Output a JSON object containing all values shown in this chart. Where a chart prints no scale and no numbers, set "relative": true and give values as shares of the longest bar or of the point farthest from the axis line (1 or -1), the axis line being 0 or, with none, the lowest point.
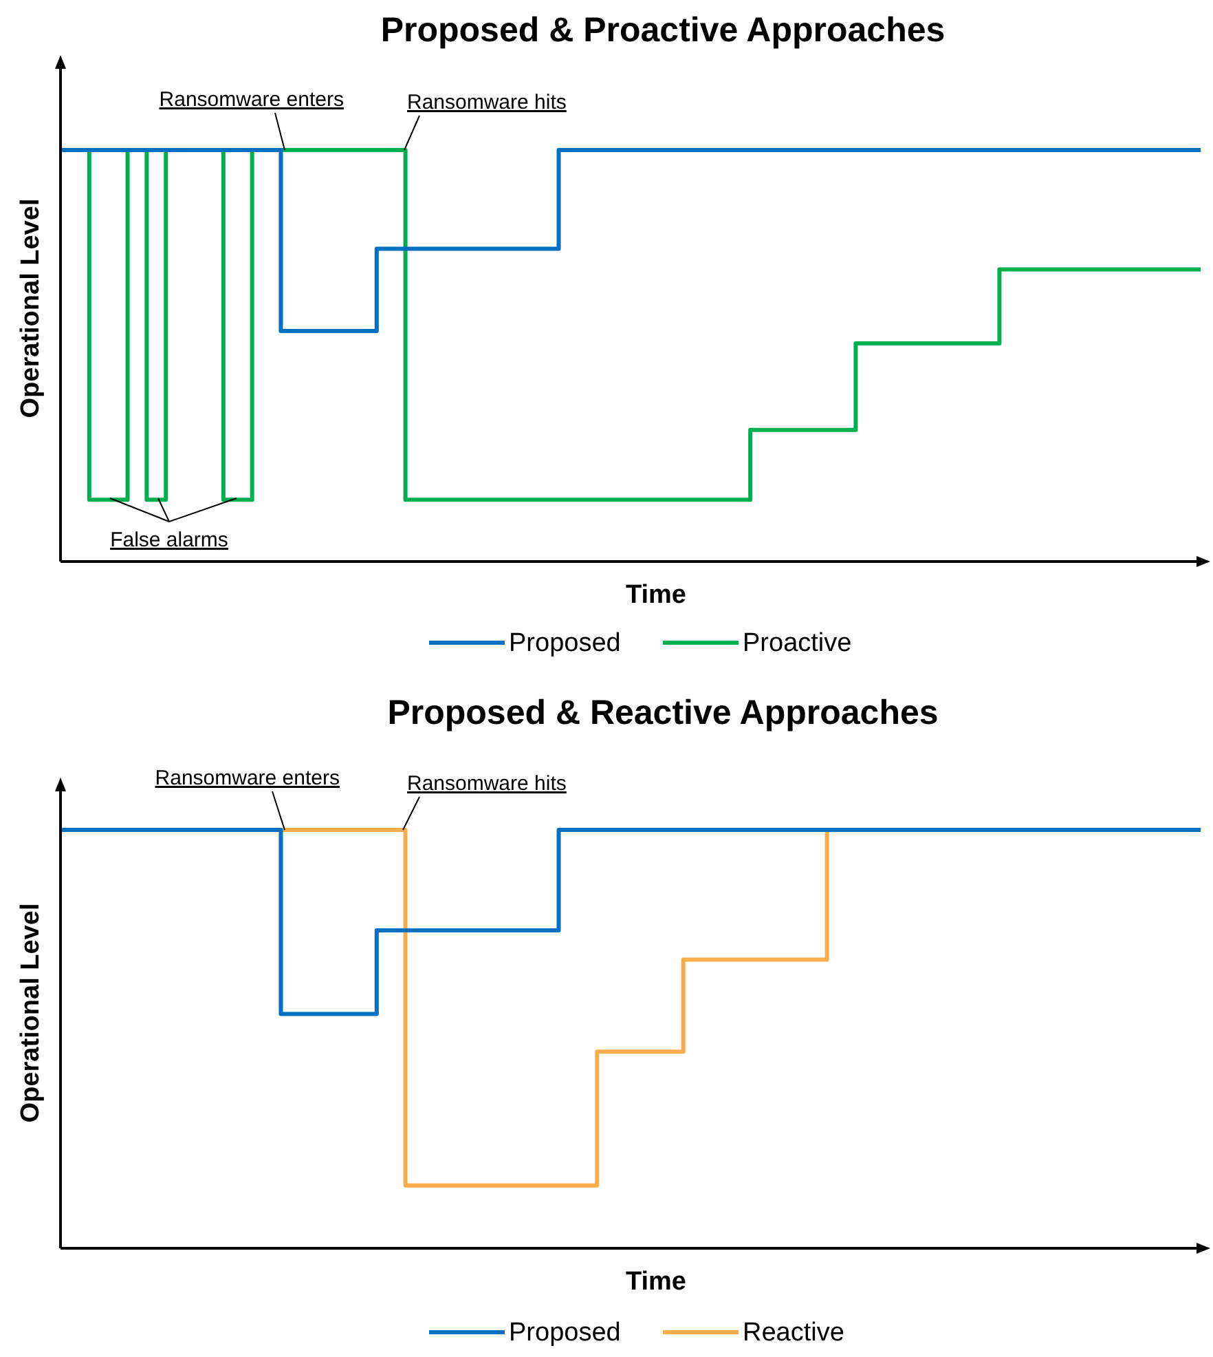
{
  "chart_data": [
    {
      "type": "step",
      "title": "Proposed & Proactive Approaches",
      "xlabel": "Time",
      "ylabel": "Operational Level",
      "relative": true,
      "legend": "bottom",
      "annotations": [
        "Ransomware enters",
        "Ransomware hits",
        "False alarms"
      ],
      "categories": [
        null,
        null,
        null,
        null,
        null,
        null,
        null,
        null,
        null,
        null,
        null,
        null,
        null,
        null,
        null,
        null,
        null,
        null,
        null,
        null,
        null,
        null,
        null,
        null,
        null,
        null,
        null,
        null,
        null,
        null,
        null,
        null,
        null,
        null,
        null,
        null,
        null,
        null,
        null,
        null,
        null,
        null,
        null,
        null,
        null,
        null,
        null,
        null,
        null,
        null,
        null,
        null,
        null,
        null,
        null,
        null,
        null,
        null,
        null,
        null,
        null,
        null,
        null,
        null,
        null,
        null,
        null,
        null,
        null,
        null,
        null,
        null,
        null,
        null,
        null,
        null,
        null,
        null,
        null,
        null,
        null,
        null,
        null,
        null,
        null,
        null,
        null,
        null,
        null,
        null,
        null,
        null,
        null,
        null,
        null,
        null,
        null,
        null,
        null,
        null,
        null,
        null,
        null,
        null,
        null,
        null,
        null,
        null,
        null,
        null,
        null,
        null,
        null,
        null,
        null,
        null,
        null,
        null,
        null,
        null
      ],
      "series": [
        {
          "name": "Proactive",
          "color": "#00b050",
          "values": [
            1,
            1,
            1,
            0.15,
            0.15,
            0.15,
            0.15,
            1,
            1,
            0.15,
            0.15,
            1,
            1,
            1,
            1,
            1,
            1,
            0.15,
            0.15,
            0.15,
            1,
            1,
            1,
            1,
            1,
            1,
            1,
            1,
            1,
            1,
            1,
            1,
            1,
            1,
            1,
            1,
            0.15,
            0.15,
            0.15,
            0.15,
            0.15,
            0.15,
            0.15,
            0.15,
            0.15,
            0.15,
            0.15,
            0.15,
            0.15,
            0.15,
            0.15,
            0.15,
            0.15,
            0.15,
            0.15,
            0.15,
            0.15,
            0.15,
            0.15,
            0.15,
            0.15,
            0.15,
            0.15,
            0.15,
            0.15,
            0.15,
            0.15,
            0.15,
            0.15,
            0.15,
            0.15,
            0.15,
            0.32,
            0.32,
            0.32,
            0.32,
            0.32,
            0.32,
            0.32,
            0.32,
            0.32,
            0.32,
            0.32,
            0.53,
            0.53,
            0.53,
            0.53,
            0.53,
            0.53,
            0.53,
            0.53,
            0.53,
            0.53,
            0.53,
            0.53,
            0.53,
            0.53,
            0.53,
            0.71,
            0.71,
            0.71,
            0.71,
            0.71,
            0.71,
            0.71,
            0.71,
            0.71,
            0.71,
            0.71,
            0.71,
            0.71,
            0.71,
            0.71,
            0.71,
            0.71,
            0.71,
            0.71,
            0.71,
            0.71,
            0.71
          ]
        },
        {
          "name": "Proposed",
          "color": "#0070c0",
          "values": [
            1,
            1,
            1,
            1,
            1,
            1,
            1,
            1,
            1,
            1,
            1,
            1,
            1,
            1,
            1,
            1,
            1,
            1,
            1,
            1,
            1,
            1,
            1,
            0.56,
            0.56,
            0.56,
            0.56,
            0.56,
            0.56,
            0.56,
            0.56,
            0.56,
            0.56,
            0.76,
            0.76,
            0.76,
            0.76,
            0.76,
            0.76,
            0.76,
            0.76,
            0.76,
            0.76,
            0.76,
            0.76,
            0.76,
            0.76,
            0.76,
            0.76,
            0.76,
            0.76,
            0.76,
            1,
            1,
            1,
            1,
            1,
            1,
            1,
            1,
            1,
            1,
            1,
            1,
            1,
            1,
            1,
            1,
            1,
            1,
            1,
            1,
            1,
            1,
            1,
            1,
            1,
            1,
            1,
            1,
            1,
            1,
            1,
            1,
            1,
            1,
            1,
            1,
            1,
            1,
            1,
            1,
            1,
            1,
            1,
            1,
            1,
            1,
            1,
            1,
            1,
            1,
            1,
            1,
            1,
            1,
            1,
            1,
            1,
            1,
            1,
            1,
            1,
            1,
            1,
            1,
            1,
            1,
            1,
            1
          ]
        }
      ]
    },
    {
      "type": "step",
      "title": "Proposed & Reactive Approaches",
      "xlabel": "Time",
      "ylabel": "Operational Level",
      "relative": true,
      "legend": "bottom",
      "annotations": [
        "Ransomware enters",
        "Ransomware hits"
      ],
      "categories": [
        null,
        null,
        null,
        null,
        null,
        null,
        null,
        null,
        null,
        null,
        null,
        null,
        null,
        null,
        null,
        null,
        null,
        null,
        null,
        null,
        null,
        null,
        null,
        null,
        null,
        null,
        null,
        null,
        null,
        null,
        null,
        null,
        null,
        null,
        null,
        null,
        null,
        null,
        null,
        null,
        null,
        null,
        null,
        null,
        null,
        null,
        null,
        null,
        null,
        null,
        null,
        null,
        null,
        null,
        null,
        null,
        null,
        null,
        null,
        null,
        null,
        null,
        null,
        null,
        null,
        null,
        null,
        null,
        null,
        null,
        null,
        null,
        null,
        null,
        null,
        null,
        null,
        null,
        null,
        null,
        null,
        null,
        null,
        null,
        null,
        null,
        null,
        null,
        null,
        null,
        null,
        null,
        null,
        null,
        null,
        null,
        null,
        null,
        null,
        null,
        null,
        null,
        null,
        null,
        null,
        null,
        null,
        null,
        null,
        null,
        null,
        null,
        null,
        null,
        null,
        null,
        null,
        null,
        null,
        null
      ],
      "series": [
        {
          "name": "Reactive",
          "color": "#f9ad4a",
          "values": [
            null,
            null,
            null,
            null,
            null,
            null,
            null,
            null,
            null,
            null,
            null,
            null,
            null,
            null,
            null,
            null,
            null,
            null,
            null,
            null,
            null,
            null,
            null,
            1,
            1,
            1,
            1,
            1,
            1,
            1,
            1,
            1,
            1,
            1,
            1,
            1,
            0.15,
            0.15,
            0.15,
            0.15,
            0.15,
            0.15,
            0.15,
            0.15,
            0.15,
            0.15,
            0.15,
            0.15,
            0.15,
            0.15,
            0.15,
            0.15,
            0.15,
            0.15,
            0.15,
            0.15,
            0.47,
            0.47,
            0.47,
            0.47,
            0.47,
            0.47,
            0.47,
            0.47,
            0.47,
            0.69,
            0.69,
            0.69,
            0.69,
            0.69,
            0.69,
            0.69,
            0.69,
            0.69,
            0.69,
            0.69,
            0.69,
            0.69,
            0.69,
            0.69,
            1,
            null,
            null,
            null,
            null,
            null,
            null,
            null,
            null,
            null,
            null,
            null,
            null,
            null,
            null,
            null,
            null,
            null,
            null,
            null,
            null,
            null,
            null,
            null,
            null,
            null,
            null,
            null,
            null,
            null,
            null,
            null,
            null,
            null,
            null,
            null,
            null,
            null,
            null,
            null
          ]
        },
        {
          "name": "Proposed",
          "color": "#0070c0",
          "values": [
            1,
            1,
            1,
            1,
            1,
            1,
            1,
            1,
            1,
            1,
            1,
            1,
            1,
            1,
            1,
            1,
            1,
            1,
            1,
            1,
            1,
            1,
            1,
            0.56,
            0.56,
            0.56,
            0.56,
            0.56,
            0.56,
            0.56,
            0.56,
            0.56,
            0.56,
            0.76,
            0.76,
            0.76,
            0.76,
            0.76,
            0.76,
            0.76,
            0.76,
            0.76,
            0.76,
            0.76,
            0.76,
            0.76,
            0.76,
            0.76,
            0.76,
            0.76,
            0.76,
            0.76,
            1,
            1,
            1,
            1,
            1,
            1,
            1,
            1,
            1,
            1,
            1,
            1,
            1,
            1,
            1,
            1,
            1,
            1,
            1,
            1,
            1,
            1,
            1,
            1,
            1,
            1,
            1,
            1,
            1,
            1,
            1,
            1,
            1,
            1,
            1,
            1,
            1,
            1,
            1,
            1,
            1,
            1,
            1,
            1,
            1,
            1,
            1,
            1,
            1,
            1,
            1,
            1,
            1,
            1,
            1,
            1,
            1,
            1,
            1,
            1,
            1,
            1,
            1,
            1,
            1,
            1,
            1,
            1
          ]
        }
      ]
    }
  ]
}
